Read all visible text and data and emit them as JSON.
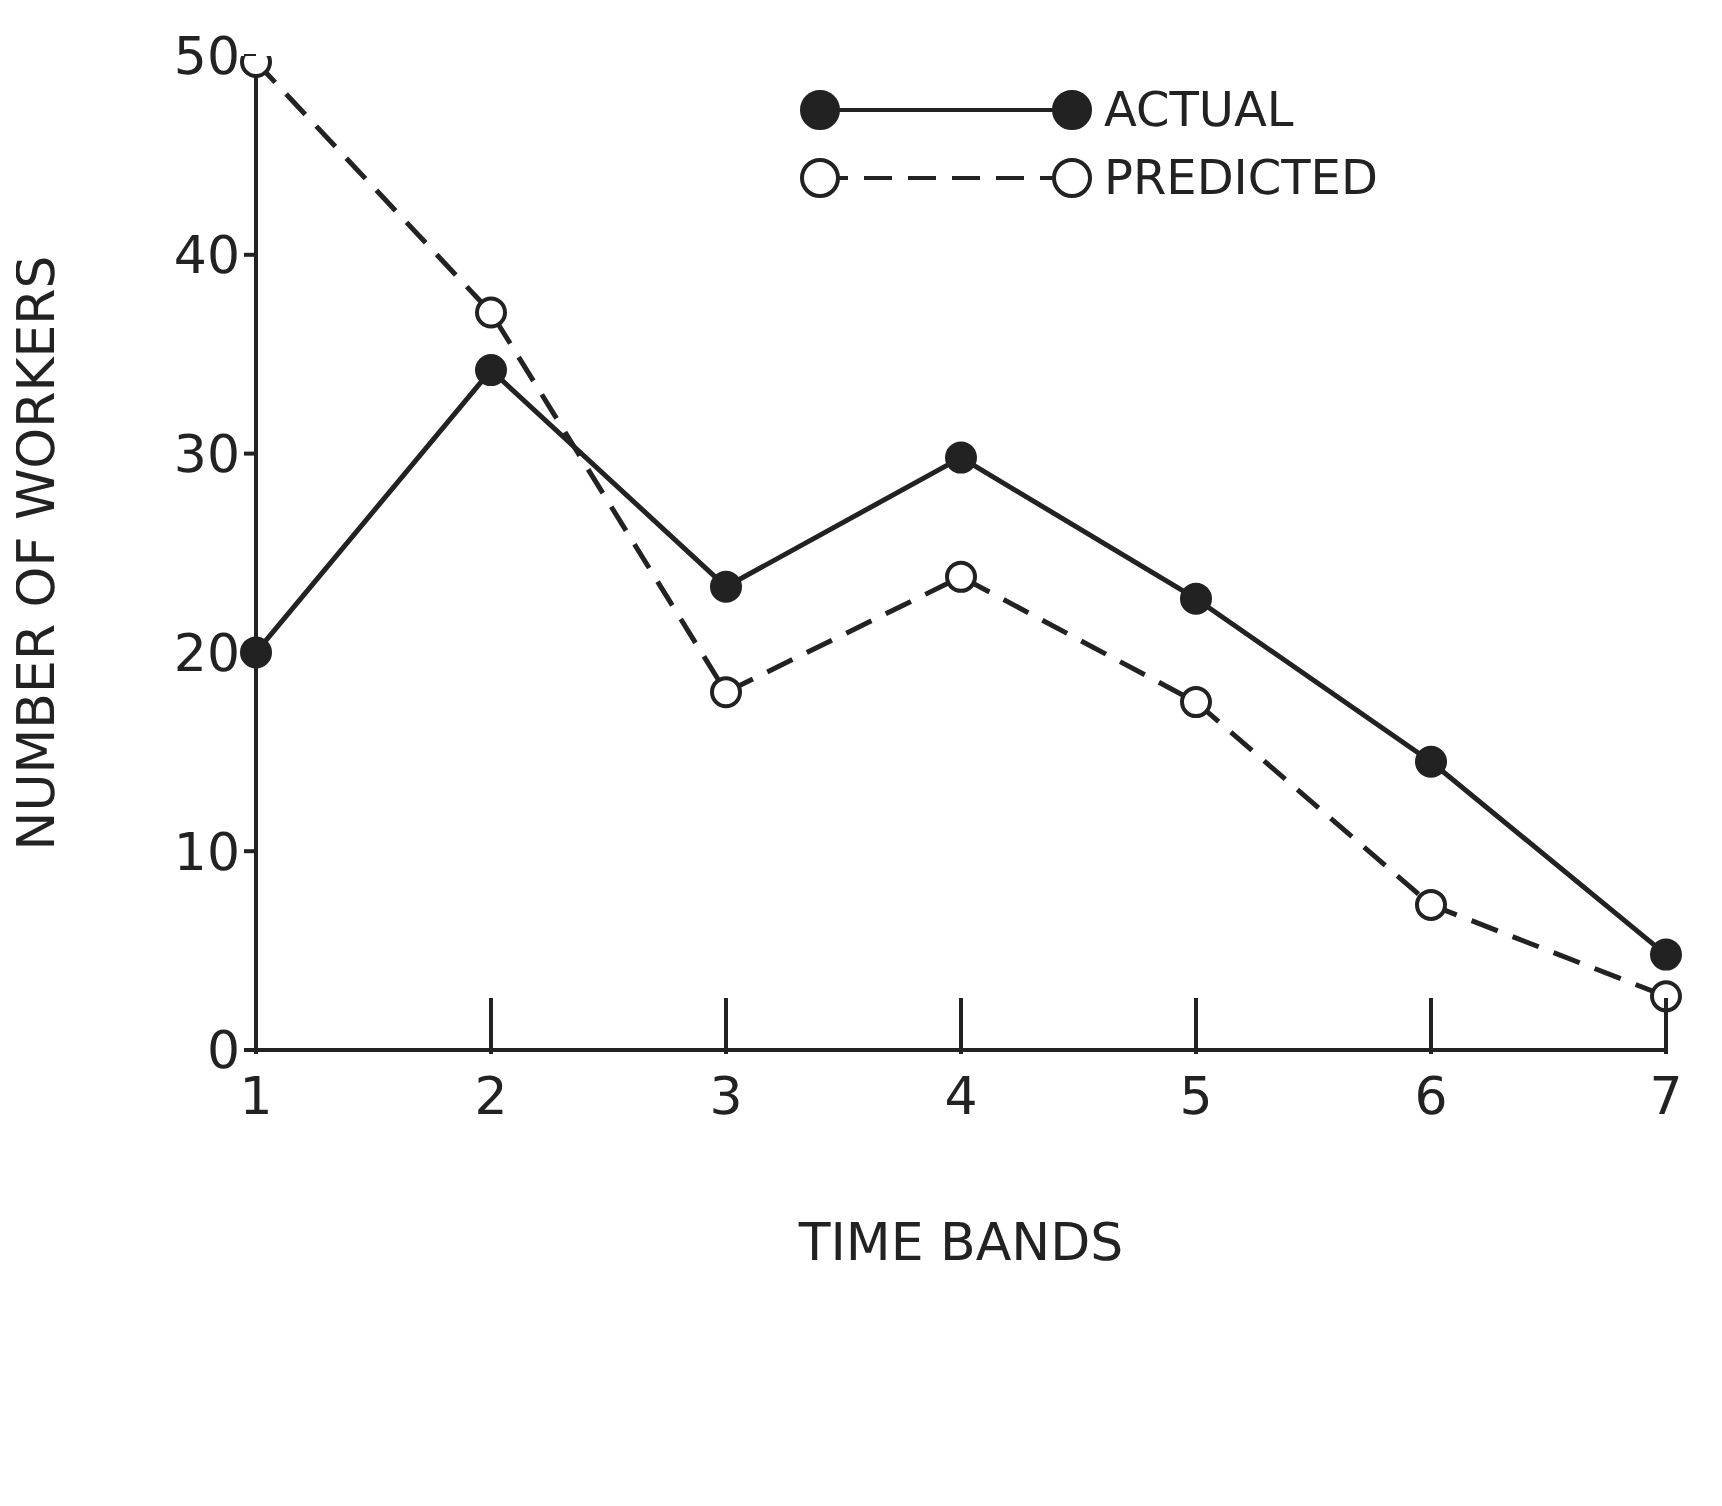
{
  "chart_data": {
    "type": "line",
    "xlabel": "TIME BANDS",
    "ylabel": "NUMBER OF WORKERS",
    "categories": [
      "1",
      "2",
      "3",
      "4",
      "5",
      "6",
      "7"
    ],
    "series": [
      {
        "name": "ACTUAL",
        "color": "#222222",
        "line_style": "solid",
        "values": [
          20,
          34.2,
          23.3,
          29.8,
          22.7,
          14.5,
          4.8
        ]
      },
      {
        "name": "PREDICTED",
        "color": "#222222",
        "line_style": "dashed",
        "values": [
          49.7,
          37.1,
          18,
          23.8,
          17.5,
          7.3,
          2.7
        ]
      }
    ],
    "ylim": [
      0,
      50
    ],
    "yticks": [
      0,
      10,
      20,
      30,
      40,
      50
    ],
    "grid": false,
    "legend": "top right",
    "marker": "circle"
  }
}
